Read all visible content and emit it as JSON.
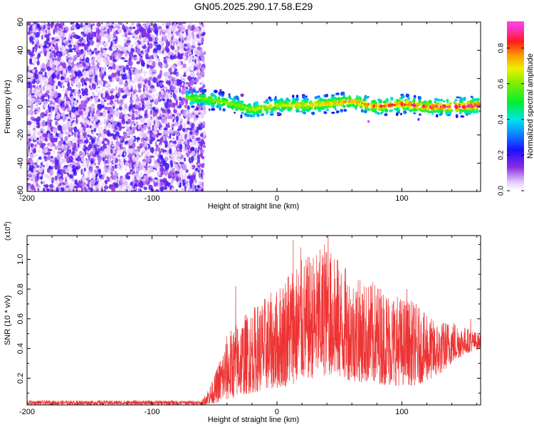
{
  "chart_data": [
    {
      "type": "heatmap",
      "title": "GN05.2025.290.17.58.E29",
      "xlabel": "Height of straight line (km)",
      "ylabel": "Frequency (Hz)",
      "xlim": [
        -200,
        163
      ],
      "ylim": [
        -60,
        60
      ],
      "x_ticks": [
        -200,
        -100,
        0,
        100
      ],
      "y_ticks": [
        -60,
        -40,
        -20,
        0,
        20,
        40,
        60
      ],
      "x_tick_labels": [
        "-200",
        "-100",
        "0",
        "100"
      ],
      "y_tick_labels": [
        "-60",
        "-40",
        "-20",
        "0",
        "20",
        "40",
        "60"
      ],
      "noise_region_x": [
        -200,
        -58
      ],
      "signal_onset_x": -72,
      "ridge_frequency": [
        {
          "x": -72,
          "y": 6
        },
        {
          "x": -60,
          "y": 6
        },
        {
          "x": -40,
          "y": 3
        },
        {
          "x": -20,
          "y": -2
        },
        {
          "x": 0,
          "y": 1
        },
        {
          "x": 20,
          "y": 1
        },
        {
          "x": 40,
          "y": 2
        },
        {
          "x": 60,
          "y": 4
        },
        {
          "x": 80,
          "y": 0
        },
        {
          "x": 100,
          "y": 2
        },
        {
          "x": 120,
          "y": 0
        },
        {
          "x": 140,
          "y": 0
        },
        {
          "x": 163,
          "y": 1
        }
      ],
      "colorbar": {
        "label": "Normalized spectral amplitude",
        "range": [
          0.0,
          0.95
        ],
        "ticks": [
          0.0,
          0.2,
          0.4,
          0.6,
          0.8
        ],
        "tick_labels": [
          "0.0",
          "0.2",
          "0.4",
          "0.6",
          "0.8"
        ]
      }
    },
    {
      "type": "line",
      "title": "",
      "xlabel": "Height of straight line (km)",
      "ylabel": "SNR (10 * v/v)",
      "y_multiplier_base": "(x10",
      "y_multiplier_exp": "4",
      "y_multiplier_close": ")",
      "xlim": [
        -200,
        163
      ],
      "ylim": [
        0.02,
        1.16
      ],
      "x_ticks": [
        -200,
        -100,
        0,
        100
      ],
      "y_ticks": [
        0.2,
        0.4,
        0.6,
        0.8,
        1.0
      ],
      "x_tick_labels": [
        "-200",
        "-100",
        "0",
        "100"
      ],
      "y_tick_labels": [
        "0.2",
        "0.4",
        "0.6",
        "0.8",
        "1.0"
      ],
      "color": "#ee3333",
      "series": [
        {
          "name": "SNR",
          "baseline": 0.035,
          "envelope": [
            {
              "x": -200,
              "lo": 0.02,
              "hi": 0.05
            },
            {
              "x": -60,
              "lo": 0.02,
              "hi": 0.05
            },
            {
              "x": -50,
              "lo": 0.03,
              "hi": 0.22
            },
            {
              "x": -40,
              "lo": 0.05,
              "hi": 0.5
            },
            {
              "x": -30,
              "lo": 0.08,
              "hi": 0.6
            },
            {
              "x": -20,
              "lo": 0.1,
              "hi": 0.68
            },
            {
              "x": -10,
              "lo": 0.12,
              "hi": 0.75
            },
            {
              "x": 0,
              "lo": 0.13,
              "hi": 0.8
            },
            {
              "x": 10,
              "lo": 0.15,
              "hi": 0.97
            },
            {
              "x": 20,
              "lo": 0.18,
              "hi": 1.0
            },
            {
              "x": 30,
              "lo": 0.2,
              "hi": 1.05
            },
            {
              "x": 40,
              "lo": 0.22,
              "hi": 1.1
            },
            {
              "x": 50,
              "lo": 0.2,
              "hi": 1.0
            },
            {
              "x": 60,
              "lo": 0.18,
              "hi": 0.9
            },
            {
              "x": 70,
              "lo": 0.17,
              "hi": 0.85
            },
            {
              "x": 80,
              "lo": 0.16,
              "hi": 0.85
            },
            {
              "x": 90,
              "lo": 0.15,
              "hi": 0.8
            },
            {
              "x": 100,
              "lo": 0.15,
              "hi": 0.75
            },
            {
              "x": 110,
              "lo": 0.15,
              "hi": 0.72
            },
            {
              "x": 120,
              "lo": 0.18,
              "hi": 0.62
            },
            {
              "x": 130,
              "lo": 0.22,
              "hi": 0.58
            },
            {
              "x": 140,
              "lo": 0.3,
              "hi": 0.6
            },
            {
              "x": 150,
              "lo": 0.36,
              "hi": 0.55
            },
            {
              "x": 163,
              "lo": 0.4,
              "hi": 0.5
            }
          ],
          "peaks": [
            {
              "x": -33,
              "y": 0.82
            },
            {
              "x": 13,
              "y": 1.13
            },
            {
              "x": 19,
              "y": 1.08
            },
            {
              "x": 38,
              "y": 1.1
            },
            {
              "x": 41,
              "y": 1.16
            },
            {
              "x": 46,
              "y": 1.0
            },
            {
              "x": 65,
              "y": 0.86
            },
            {
              "x": 104,
              "y": 0.8
            },
            {
              "x": 120,
              "y": 0.62
            },
            {
              "x": 155,
              "y": 0.6
            }
          ]
        }
      ]
    }
  ]
}
